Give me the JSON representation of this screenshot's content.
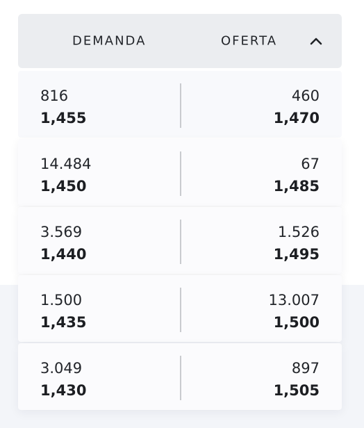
{
  "header": {
    "demand_label": "DEMANDA",
    "offer_label": "OFERTA",
    "toggle_icon": "chevron-up-icon"
  },
  "rows": [
    {
      "demand_qty": "816",
      "demand_price": "1,455",
      "offer_qty": "460",
      "offer_price": "1,470"
    },
    {
      "demand_qty": "14.484",
      "demand_price": "1,450",
      "offer_qty": "67",
      "offer_price": "1,485"
    },
    {
      "demand_qty": "3.569",
      "demand_price": "1,440",
      "offer_qty": "1.526",
      "offer_price": "1,495"
    },
    {
      "demand_qty": "1.500",
      "demand_price": "1,435",
      "offer_qty": "13.007",
      "offer_price": "1,500"
    },
    {
      "demand_qty": "3.049",
      "demand_price": "1,430",
      "offer_qty": "897",
      "offer_price": "1,505"
    }
  ]
}
